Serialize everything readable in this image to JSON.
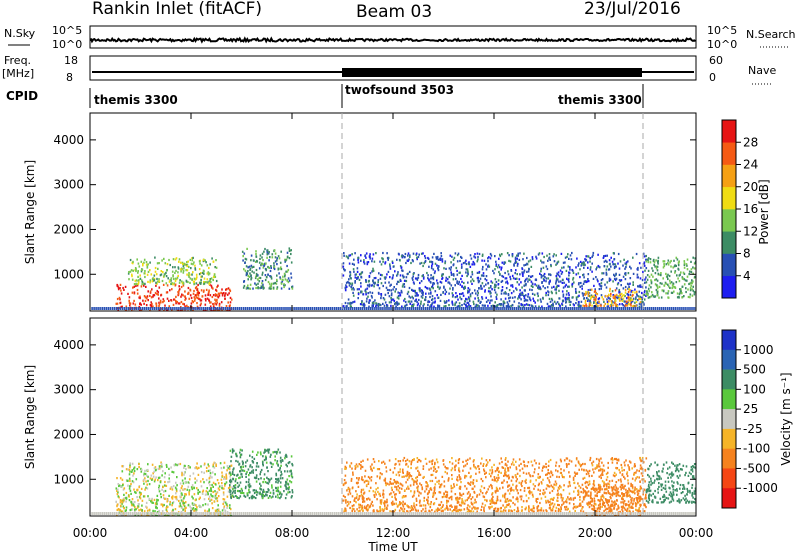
{
  "header": {
    "title": "Rankin Inlet (fitACF)",
    "beam": "Beam 03",
    "date": "23/Jul/2016"
  },
  "noise_panel": {
    "left_label": "N.Sky",
    "left_ticks": [
      "10^5",
      "10^0"
    ],
    "right_label": "N.Search",
    "right_ticks": [
      "10^5",
      "10^0"
    ]
  },
  "freq_panel": {
    "left_label_line1": "Freq.",
    "left_label_line2": "[MHz]",
    "left_ticks": [
      "18",
      "8"
    ],
    "right_label": "Nave",
    "right_ticks": [
      "60",
      "0"
    ]
  },
  "cpid_panel": {
    "label": "CPID",
    "segments": [
      {
        "name": "themis 3300",
        "start_hour": 0,
        "end_hour": 10
      },
      {
        "name": "twofsound 3503",
        "start_hour": 10,
        "end_hour": 22
      },
      {
        "name": "themis 3300",
        "start_hour": 22,
        "end_hour": 24
      }
    ]
  },
  "axes": {
    "ylabel": "Slant Range [km]",
    "xlabel": "Time UT",
    "x_ticks": [
      "00:00",
      "04:00",
      "08:00",
      "12:00",
      "16:00",
      "20:00",
      "00:00"
    ],
    "y_ticks": [
      "1000",
      "2000",
      "3000",
      "4000"
    ]
  },
  "power_colorbar": {
    "label": "Power [dB]",
    "ticks": [
      "4",
      "8",
      "12",
      "16",
      "20",
      "24",
      "28"
    ],
    "colors": [
      "#1e1ef0",
      "#2850b4",
      "#3c8c64",
      "#7ac850",
      "#f0dc14",
      "#f5a014",
      "#f55a14",
      "#e61414"
    ]
  },
  "velocity_colorbar": {
    "label": "Velocity [m s⁻¹]",
    "ticks": [
      "1000",
      "500",
      "100",
      "25",
      "-25",
      "-100",
      "-500",
      "-1000"
    ],
    "colors": [
      "#1e32c8",
      "#2a64b4",
      "#3c8c64",
      "#5ac83c",
      "#c8c8c0",
      "#f5b428",
      "#f5821e",
      "#f54614",
      "#e61414"
    ]
  },
  "chart_data": {
    "type": "heatmap",
    "description_free": true,
    "x_range_hours": [
      0,
      24
    ],
    "y_range_km": [
      180,
      4600
    ],
    "power_regions_db": [
      {
        "t0": 1.0,
        "t1": 5.6,
        "r0": 180,
        "r1": 800,
        "value": 28
      },
      {
        "t0": 1.5,
        "t1": 5.0,
        "r0": 800,
        "r1": 1400,
        "value": 14
      },
      {
        "t0": 6.0,
        "t1": 8.0,
        "r0": 700,
        "r1": 1600,
        "value": 10
      },
      {
        "t0": 10.0,
        "t1": 22.0,
        "r0": 300,
        "r1": 1500,
        "value": 6
      },
      {
        "t0": 19.5,
        "t1": 21.8,
        "r0": 300,
        "r1": 700,
        "value": 22
      },
      {
        "t0": 22.0,
        "t1": 24.0,
        "r0": 500,
        "r1": 1400,
        "value": 12
      }
    ],
    "velocity_regions_ms": [
      {
        "t0": 1.0,
        "t1": 5.6,
        "r0": 180,
        "r1": 1400,
        "value": 0
      },
      {
        "t0": 5.5,
        "t1": 8.0,
        "r0": 600,
        "r1": 1700,
        "value": 150
      },
      {
        "t0": 10.0,
        "t1": 22.0,
        "r0": 300,
        "r1": 1500,
        "value": -150
      },
      {
        "t0": 19.5,
        "t1": 21.8,
        "r0": 200,
        "r1": 900,
        "value": -300
      },
      {
        "t0": 22.0,
        "t1": 24.0,
        "r0": 500,
        "r1": 1400,
        "value": 200
      }
    ]
  }
}
